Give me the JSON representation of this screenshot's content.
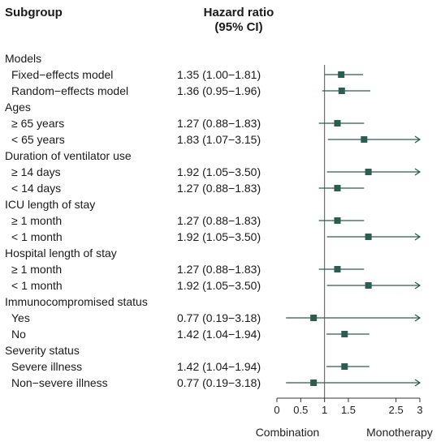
{
  "headers": {
    "subgroup": "Subgroup",
    "hazard_ratio_line1": "Hazard ratio",
    "hazard_ratio_line2": "(95% CI)"
  },
  "colors": {
    "marker": "#2b5e4f",
    "line": "#2b5e4f",
    "ref_line": "#555555",
    "axis": "#333333"
  },
  "chart_data": {
    "type": "forest",
    "xlabel_left": "Combination",
    "xlabel_right": "Monotherapy",
    "xlim": [
      0,
      3
    ],
    "reference": 1,
    "ticks": [
      {
        "value": 0,
        "label": "0"
      },
      {
        "value": 0.5,
        "label": "0.5"
      },
      {
        "value": 1,
        "label": "1"
      },
      {
        "value": 1.5,
        "label": "1.5"
      },
      {
        "value": 2.5,
        "label": "2.5"
      },
      {
        "value": 3,
        "label": "3"
      }
    ],
    "rows": [
      {
        "kind": "group",
        "label": "Models"
      },
      {
        "kind": "item",
        "label": "Fixed−effects model",
        "hr_text": "1.35 (1.00−1.81)",
        "est": 1.35,
        "lo": 1.0,
        "hi": 1.81
      },
      {
        "kind": "item",
        "label": "Random−effects model",
        "hr_text": "1.36 (0.95−1.96)",
        "est": 1.36,
        "lo": 0.95,
        "hi": 1.96
      },
      {
        "kind": "group",
        "label": "Ages"
      },
      {
        "kind": "item",
        "label": "≥ 65 years",
        "hr_text": "1.27 (0.88−1.83)",
        "est": 1.27,
        "lo": 0.88,
        "hi": 1.83
      },
      {
        "kind": "item",
        "label": "< 65 years",
        "hr_text": "1.83 (1.07−3.15)",
        "est": 1.83,
        "lo": 1.07,
        "hi": 3.15
      },
      {
        "kind": "group",
        "label": "Duration of ventilator use"
      },
      {
        "kind": "item",
        "label": "≥ 14 days",
        "hr_text": "1.92 (1.05−3.50)",
        "est": 1.92,
        "lo": 1.05,
        "hi": 3.5
      },
      {
        "kind": "item",
        "label": "< 14 days",
        "hr_text": "1.27 (0.88−1.83)",
        "est": 1.27,
        "lo": 0.88,
        "hi": 1.83
      },
      {
        "kind": "group",
        "label": "ICU length of stay"
      },
      {
        "kind": "item",
        "label": "≥ 1 month",
        "hr_text": "1.27 (0.88−1.83)",
        "est": 1.27,
        "lo": 0.88,
        "hi": 1.83
      },
      {
        "kind": "item",
        "label": "< 1 month",
        "hr_text": "1.92 (1.05−3.50)",
        "est": 1.92,
        "lo": 1.05,
        "hi": 3.5
      },
      {
        "kind": "group",
        "label": "Hospital length of stay"
      },
      {
        "kind": "item",
        "label": "≥ 1 month",
        "hr_text": "1.27 (0.88−1.83)",
        "est": 1.27,
        "lo": 0.88,
        "hi": 1.83
      },
      {
        "kind": "item",
        "label": "< 1 month",
        "hr_text": "1.92 (1.05−3.50)",
        "est": 1.92,
        "lo": 1.05,
        "hi": 3.5
      },
      {
        "kind": "group",
        "label": "Immunocompromised status"
      },
      {
        "kind": "item",
        "label": "Yes",
        "hr_text": "0.77 (0.19−3.18)",
        "est": 0.77,
        "lo": 0.19,
        "hi": 3.18
      },
      {
        "kind": "item",
        "label": "No",
        "hr_text": "1.42 (1.04−1.94)",
        "est": 1.42,
        "lo": 1.04,
        "hi": 1.94
      },
      {
        "kind": "group",
        "label": "Severity status"
      },
      {
        "kind": "item",
        "label": "Severe illness",
        "hr_text": "1.42 (1.04−1.94)",
        "est": 1.42,
        "lo": 1.04,
        "hi": 1.94
      },
      {
        "kind": "item",
        "label": "Non−severe illness",
        "hr_text": "0.77 (0.19−3.18)",
        "est": 0.77,
        "lo": 0.19,
        "hi": 3.18
      }
    ]
  }
}
